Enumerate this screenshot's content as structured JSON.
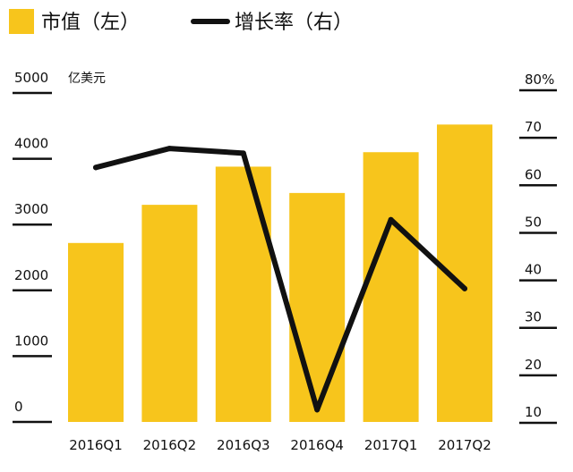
{
  "chart_data": {
    "type": "bar+line",
    "categories": [
      "2016Q1",
      "2016Q2",
      "2016Q3",
      "2016Q4",
      "2017Q1",
      "2017Q2"
    ],
    "series": [
      {
        "name": "市值（左）",
        "type": "bar",
        "axis": "left",
        "color": "#F7C51C",
        "values": [
          2720,
          3300,
          3880,
          3480,
          4100,
          4520
        ]
      },
      {
        "name": "增长率（右）",
        "type": "line",
        "axis": "right",
        "color": "#111111",
        "values": [
          61.5,
          65.5,
          64.5,
          10.5,
          50.5,
          36
        ]
      }
    ],
    "left_axis": {
      "unit": "亿美元",
      "range": [
        0,
        5000
      ],
      "ticks": [
        0,
        1000,
        2000,
        3000,
        4000,
        5000
      ],
      "tick_labels": [
        "0",
        "1000",
        "2000",
        "3000",
        "4000",
        "5000"
      ]
    },
    "right_axis": {
      "range": [
        5,
        80
      ],
      "ticks": [
        10,
        20,
        30,
        40,
        50,
        60,
        70,
        80
      ],
      "tick_labels": [
        "10",
        "20",
        "30",
        "40",
        "50",
        "60",
        "70",
        "80%"
      ]
    },
    "legend_position": "top"
  }
}
